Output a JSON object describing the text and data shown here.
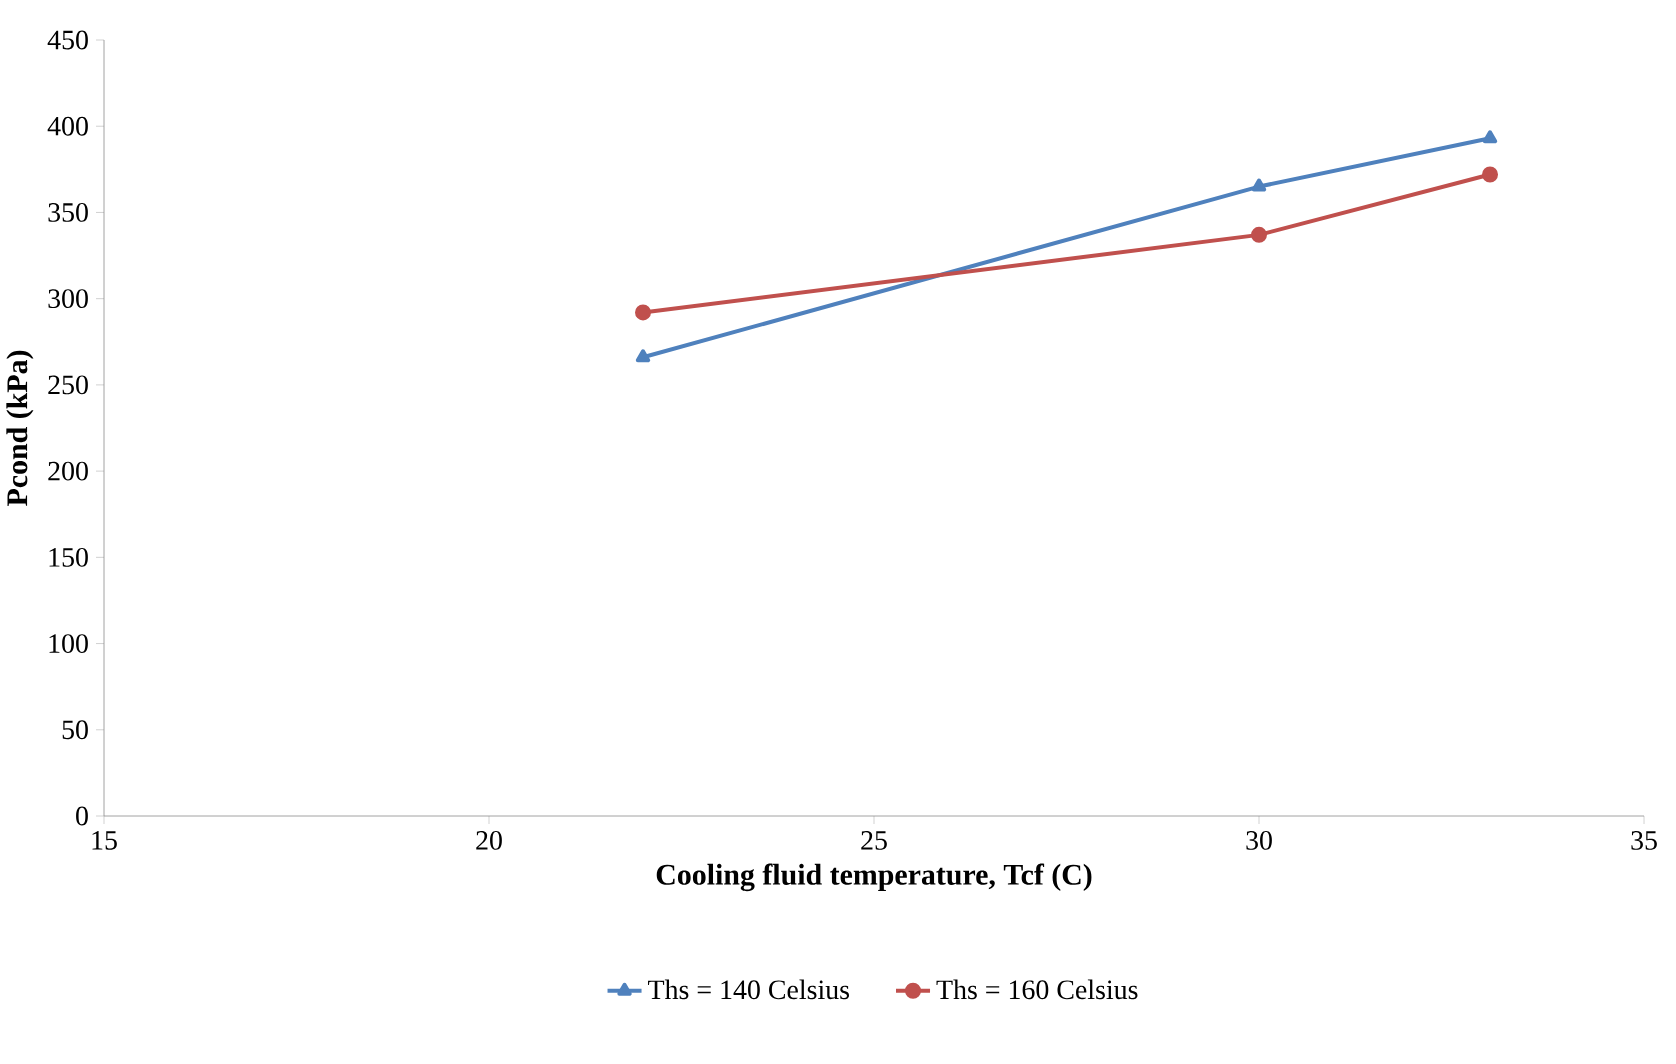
{
  "chart_data": {
    "type": "line",
    "xlabel": "Cooling fluid temperature, Tcf (C)",
    "ylabel": "Pcond (kPa)",
    "xlim": [
      15,
      35
    ],
    "xticks": [
      15,
      20,
      25,
      30,
      35
    ],
    "ylim": [
      0,
      450
    ],
    "yticks": [
      0,
      50,
      100,
      150,
      200,
      250,
      300,
      350,
      400,
      450
    ],
    "grid": false,
    "legend": "bottom",
    "series": [
      {
        "name": "Ths = 140 Celsius",
        "color": "#4f81bd",
        "marker": "triangle",
        "x": [
          22,
          30,
          33
        ],
        "values": [
          266,
          365,
          393
        ]
      },
      {
        "name": "Ths = 160 Celsius",
        "color": "#c0504d",
        "marker": "circle",
        "x": [
          22,
          30,
          33
        ],
        "values": [
          292,
          337,
          372
        ]
      }
    ]
  }
}
